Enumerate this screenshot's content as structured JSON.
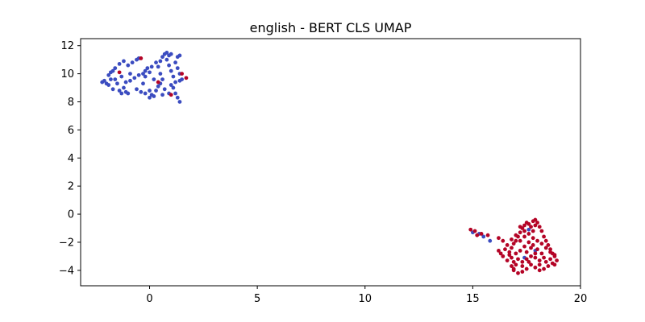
{
  "chart_data": {
    "type": "scatter",
    "title": "english - BERT CLS UMAP",
    "xlabel": "",
    "ylabel": "",
    "xlim": [
      -3.2,
      20
    ],
    "ylim": [
      -5.1,
      12.5
    ],
    "xticks": [
      0,
      5,
      10,
      15,
      20
    ],
    "yticks": [
      -4,
      -2,
      0,
      2,
      4,
      6,
      8,
      10,
      12
    ],
    "grid": false,
    "legend": "none",
    "colors": {
      "blue": "#3b4cc0",
      "red": "#b40426"
    },
    "series": [
      {
        "color": "blue",
        "points": [
          [
            -2.2,
            9.4
          ],
          [
            -2.1,
            9.5
          ],
          [
            -2.0,
            9.3
          ],
          [
            -1.9,
            9.9
          ],
          [
            -1.9,
            9.2
          ],
          [
            -1.8,
            9.6
          ],
          [
            -1.7,
            8.9
          ],
          [
            -1.6,
            9.6
          ],
          [
            -1.5,
            9.3
          ],
          [
            -1.4,
            8.8
          ],
          [
            -1.3,
            8.6
          ],
          [
            -1.2,
            9.0
          ],
          [
            -1.1,
            8.7
          ],
          [
            -1.0,
            8.6
          ],
          [
            -1.8,
            10.1
          ],
          [
            -1.6,
            10.4
          ],
          [
            -1.4,
            10.7
          ],
          [
            -1.2,
            10.9
          ],
          [
            -1.0,
            10.6
          ],
          [
            -0.8,
            10.8
          ],
          [
            -0.6,
            11.0
          ],
          [
            -0.5,
            11.1
          ],
          [
            -1.7,
            10.2
          ],
          [
            -1.3,
            9.8
          ],
          [
            -0.9,
            9.5
          ],
          [
            -0.7,
            9.7
          ],
          [
            -0.5,
            9.9
          ],
          [
            -0.3,
            10.0
          ],
          [
            -0.2,
            10.2
          ],
          [
            -0.1,
            10.4
          ],
          [
            0.0,
            10.1
          ],
          [
            -0.6,
            8.9
          ],
          [
            -0.4,
            8.7
          ],
          [
            -0.2,
            8.6
          ],
          [
            0.0,
            8.8
          ],
          [
            0.1,
            8.5
          ],
          [
            0.0,
            8.3
          ],
          [
            0.2,
            8.4
          ],
          [
            0.3,
            8.8
          ],
          [
            0.4,
            9.1
          ],
          [
            0.5,
            9.3
          ],
          [
            0.6,
            9.6
          ],
          [
            0.5,
            10.0
          ],
          [
            0.4,
            10.5
          ],
          [
            0.5,
            10.9
          ],
          [
            0.6,
            11.2
          ],
          [
            0.7,
            11.4
          ],
          [
            0.8,
            11.5
          ],
          [
            0.9,
            11.3
          ],
          [
            0.8,
            11.0
          ],
          [
            0.9,
            10.6
          ],
          [
            1.0,
            10.2
          ],
          [
            1.1,
            9.8
          ],
          [
            1.2,
            9.4
          ],
          [
            1.1,
            9.0
          ],
          [
            1.2,
            8.6
          ],
          [
            1.3,
            8.3
          ],
          [
            1.4,
            8.0
          ],
          [
            1.5,
            9.6
          ],
          [
            1.4,
            10.0
          ],
          [
            1.3,
            10.4
          ],
          [
            1.2,
            10.8
          ],
          [
            1.3,
            11.2
          ],
          [
            1.4,
            11.3
          ],
          [
            1.0,
            11.4
          ],
          [
            0.3,
            10.8
          ],
          [
            0.1,
            10.5
          ],
          [
            -0.3,
            9.3
          ],
          [
            0.7,
            8.9
          ],
          [
            0.9,
            8.6
          ],
          [
            1.0,
            9.2
          ],
          [
            0.2,
            9.6
          ],
          [
            -0.9,
            10.0
          ],
          [
            -1.1,
            9.4
          ],
          [
            1.4,
            9.5
          ],
          [
            0.6,
            8.5
          ],
          [
            -0.2,
            9.8
          ],
          [
            15.0,
            -1.3
          ],
          [
            15.3,
            -1.4
          ],
          [
            15.5,
            -1.6
          ],
          [
            15.8,
            -1.9
          ],
          [
            17.4,
            -3.1
          ],
          [
            17.9,
            -2.6
          ],
          [
            17.6,
            -1.1
          ]
        ]
      },
      {
        "color": "red",
        "points": [
          [
            -1.4,
            10.1
          ],
          [
            -0.4,
            11.1
          ],
          [
            0.4,
            9.4
          ],
          [
            1.0,
            8.5
          ],
          [
            1.5,
            10.0
          ],
          [
            1.7,
            9.7
          ],
          [
            14.9,
            -1.1
          ],
          [
            15.1,
            -1.2
          ],
          [
            15.2,
            -1.5
          ],
          [
            15.4,
            -1.4
          ],
          [
            15.7,
            -1.5
          ],
          [
            16.2,
            -1.7
          ],
          [
            16.4,
            -1.9
          ],
          [
            16.2,
            -2.6
          ],
          [
            16.3,
            -2.8
          ],
          [
            16.5,
            -2.5
          ],
          [
            16.7,
            -2.9
          ],
          [
            16.8,
            -2.4
          ],
          [
            16.9,
            -2.1
          ],
          [
            17.0,
            -1.9
          ],
          [
            17.1,
            -1.6
          ],
          [
            17.2,
            -1.3
          ],
          [
            17.3,
            -1.0
          ],
          [
            17.4,
            -0.8
          ],
          [
            17.5,
            -0.6
          ],
          [
            17.6,
            -0.7
          ],
          [
            17.7,
            -0.9
          ],
          [
            17.8,
            -0.5
          ],
          [
            17.9,
            -0.4
          ],
          [
            18.0,
            -0.6
          ],
          [
            18.1,
            -0.9
          ],
          [
            18.2,
            -1.2
          ],
          [
            18.3,
            -1.6
          ],
          [
            18.4,
            -1.9
          ],
          [
            18.5,
            -2.2
          ],
          [
            18.6,
            -2.5
          ],
          [
            18.7,
            -2.8
          ],
          [
            18.8,
            -3.0
          ],
          [
            18.9,
            -3.3
          ],
          [
            18.7,
            -3.5
          ],
          [
            18.5,
            -3.7
          ],
          [
            18.3,
            -3.9
          ],
          [
            18.1,
            -4.0
          ],
          [
            17.9,
            -3.8
          ],
          [
            17.7,
            -3.6
          ],
          [
            17.5,
            -3.9
          ],
          [
            17.3,
            -4.1
          ],
          [
            17.1,
            -4.2
          ],
          [
            16.9,
            -4.0
          ],
          [
            16.8,
            -3.7
          ],
          [
            16.9,
            -3.4
          ],
          [
            17.1,
            -3.2
          ],
          [
            17.3,
            -3.4
          ],
          [
            17.5,
            -3.2
          ],
          [
            17.7,
            -3.0
          ],
          [
            17.9,
            -3.1
          ],
          [
            18.1,
            -3.3
          ],
          [
            18.3,
            -3.1
          ],
          [
            18.2,
            -2.8
          ],
          [
            18.0,
            -2.5
          ],
          [
            17.8,
            -2.2
          ],
          [
            17.6,
            -2.0
          ],
          [
            17.4,
            -2.3
          ],
          [
            17.2,
            -2.6
          ],
          [
            17.0,
            -2.8
          ],
          [
            16.8,
            -3.1
          ],
          [
            16.6,
            -3.3
          ],
          [
            16.4,
            -3.0
          ],
          [
            16.6,
            -2.2
          ],
          [
            16.8,
            -1.8
          ],
          [
            17.0,
            -1.5
          ],
          [
            17.2,
            -1.9
          ],
          [
            17.4,
            -1.6
          ],
          [
            17.6,
            -1.4
          ],
          [
            17.8,
            -1.7
          ],
          [
            18.0,
            -1.9
          ],
          [
            18.2,
            -2.1
          ],
          [
            18.4,
            -2.4
          ],
          [
            18.6,
            -2.7
          ],
          [
            18.8,
            -2.9
          ],
          [
            17.5,
            -2.7
          ],
          [
            17.7,
            -2.4
          ],
          [
            17.9,
            -2.8
          ],
          [
            18.1,
            -3.6
          ],
          [
            17.3,
            -3.7
          ],
          [
            16.9,
            -3.9
          ],
          [
            17.6,
            -3.4
          ],
          [
            18.4,
            -3.4
          ],
          [
            17.8,
            -1.2
          ],
          [
            17.4,
            -1.2
          ],
          [
            16.7,
            -2.7
          ],
          [
            17.0,
            -3.6
          ],
          [
            18.6,
            -3.2
          ],
          [
            18.8,
            -3.6
          ],
          [
            17.2,
            -0.9
          ],
          [
            17.9,
            -0.8
          ]
        ]
      }
    ]
  }
}
